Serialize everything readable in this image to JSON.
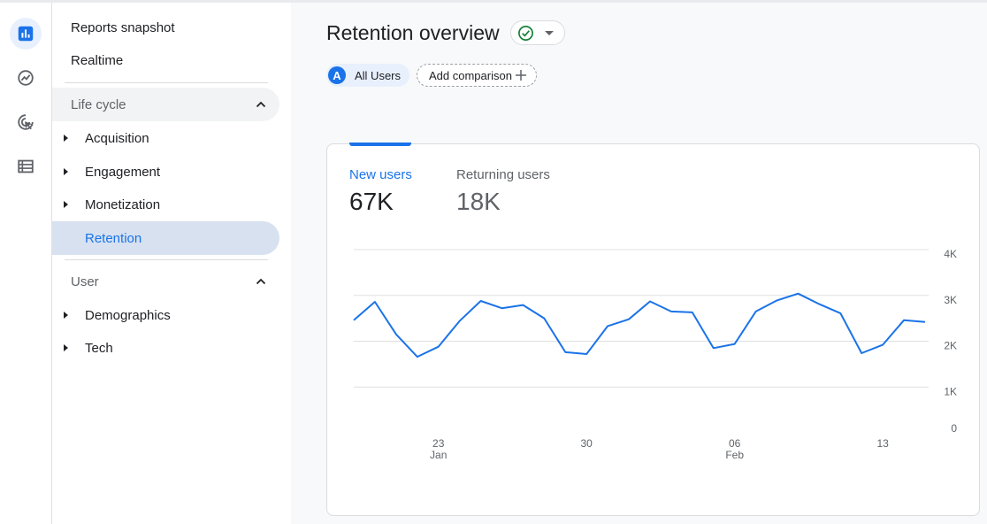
{
  "rail": {
    "items": [
      {
        "name": "reports-icon",
        "active": true
      },
      {
        "name": "explore-icon",
        "active": false
      },
      {
        "name": "advertising-icon",
        "active": false
      },
      {
        "name": "configure-icon",
        "active": false
      }
    ]
  },
  "nav": {
    "reports_snapshot": "Reports snapshot",
    "realtime": "Realtime",
    "lifecycle": {
      "label": "Life cycle",
      "items": [
        "Acquisition",
        "Engagement",
        "Monetization",
        "Retention"
      ],
      "selected": "Retention"
    },
    "user": {
      "label": "User",
      "items": [
        "Demographics",
        "Tech"
      ]
    }
  },
  "header": {
    "title": "Retention overview",
    "segment_letter": "A",
    "segment_label": "All Users",
    "add_comparison": "Add comparison"
  },
  "card": {
    "metrics": [
      {
        "label": "New users",
        "value": "67K"
      },
      {
        "label": "Returning users",
        "value": "18K"
      }
    ]
  },
  "colors": {
    "accent": "#1a73e8",
    "status_ok": "#188038"
  },
  "chart_data": {
    "type": "line",
    "y_ticks": [
      "4K",
      "3K",
      "2K",
      "1K",
      "0"
    ],
    "ylim": [
      0,
      4000
    ],
    "x_tick_labels": [
      {
        "day": "23",
        "month": "Jan"
      },
      {
        "day": "30",
        "month": ""
      },
      {
        "day": "06",
        "month": "Feb"
      },
      {
        "day": "13",
        "month": ""
      }
    ],
    "x": [
      "Jan 19",
      "Jan 20",
      "Jan 21",
      "Jan 22",
      "Jan 23",
      "Jan 24",
      "Jan 25",
      "Jan 26",
      "Jan 27",
      "Jan 28",
      "Jan 29",
      "Jan 30",
      "Jan 31",
      "Feb 01",
      "Feb 02",
      "Feb 03",
      "Feb 04",
      "Feb 05",
      "Feb 06",
      "Feb 07",
      "Feb 08",
      "Feb 09",
      "Feb 10",
      "Feb 11",
      "Feb 12",
      "Feb 13",
      "Feb 14",
      "Feb 15"
    ],
    "series": [
      {
        "values": [
          2460,
          2860,
          2150,
          1660,
          1880,
          2440,
          2880,
          2720,
          2790,
          2500,
          1760,
          1720,
          2330,
          2480,
          2870,
          2650,
          2630,
          1850,
          1940,
          2650,
          2890,
          3040,
          2810,
          2610,
          1740,
          1920,
          2460,
          2420
        ]
      }
    ],
    "grid": true
  }
}
